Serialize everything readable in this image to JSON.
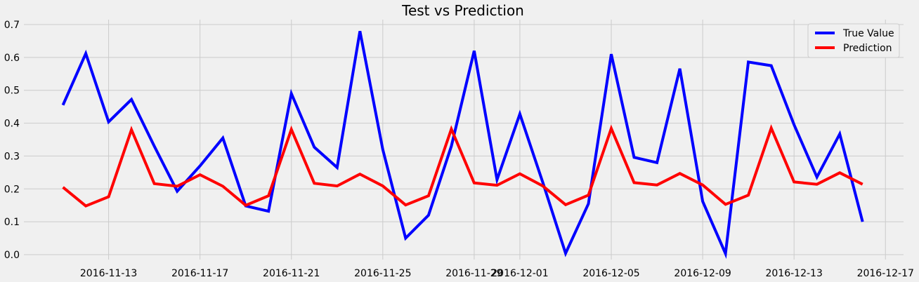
{
  "chart_data": {
    "type": "line",
    "title": "Test vs Prediction",
    "xlabel": "",
    "ylabel": "",
    "x_dates": [
      "2016-11-11",
      "2016-11-12",
      "2016-11-13",
      "2016-11-14",
      "2016-11-15",
      "2016-11-16",
      "2016-11-17",
      "2016-11-18",
      "2016-11-19",
      "2016-11-20",
      "2016-11-21",
      "2016-11-22",
      "2016-11-23",
      "2016-11-24",
      "2016-11-25",
      "2016-11-26",
      "2016-11-27",
      "2016-11-28",
      "2016-11-29",
      "2016-11-30",
      "2016-12-01",
      "2016-12-02",
      "2016-12-03",
      "2016-12-04",
      "2016-12-05",
      "2016-12-06",
      "2016-12-07",
      "2016-12-08",
      "2016-12-09",
      "2016-12-10",
      "2016-12-11",
      "2016-12-12",
      "2016-12-13",
      "2016-12-14",
      "2016-12-15",
      "2016-12-16"
    ],
    "series": [
      {
        "name": "True Value",
        "color": "#0000ff",
        "values": [
          0.455,
          0.612,
          0.404,
          0.472,
          0.33,
          0.193,
          0.27,
          0.355,
          0.148,
          0.132,
          0.49,
          0.327,
          0.265,
          0.68,
          0.32,
          0.05,
          0.12,
          0.33,
          0.62,
          0.228,
          0.428,
          0.22,
          0.004,
          0.155,
          0.61,
          0.296,
          0.28,
          0.566,
          0.162,
          0.003,
          0.586,
          0.575,
          0.395,
          0.236,
          0.367,
          0.1
        ]
      },
      {
        "name": "Prediction",
        "color": "#ff0000",
        "values": [
          0.205,
          0.148,
          0.176,
          0.38,
          0.216,
          0.208,
          0.243,
          0.208,
          0.15,
          0.179,
          0.381,
          0.217,
          0.209,
          0.245,
          0.209,
          0.151,
          0.179,
          0.382,
          0.218,
          0.211,
          0.246,
          0.209,
          0.152,
          0.181,
          0.384,
          0.219,
          0.212,
          0.247,
          0.212,
          0.153,
          0.181,
          0.385,
          0.221,
          0.214,
          0.249,
          0.214
        ]
      }
    ],
    "x_tick_labels": [
      "2016-11-13",
      "2016-11-17",
      "2016-11-21",
      "2016-11-25",
      "2016-11-29",
      "2016-12-01",
      "2016-12-05",
      "2016-12-09",
      "2016-12-13",
      "2016-12-17"
    ],
    "y_tick_labels": [
      "0.0",
      "0.1",
      "0.2",
      "0.3",
      "0.4",
      "0.5",
      "0.6",
      "0.7"
    ],
    "ylim": [
      -0.015,
      0.715
    ],
    "xlim": [
      "2016-11-09T07:00",
      "2016-12-17T19:00"
    ],
    "grid": true,
    "legend_position": "top-right"
  }
}
